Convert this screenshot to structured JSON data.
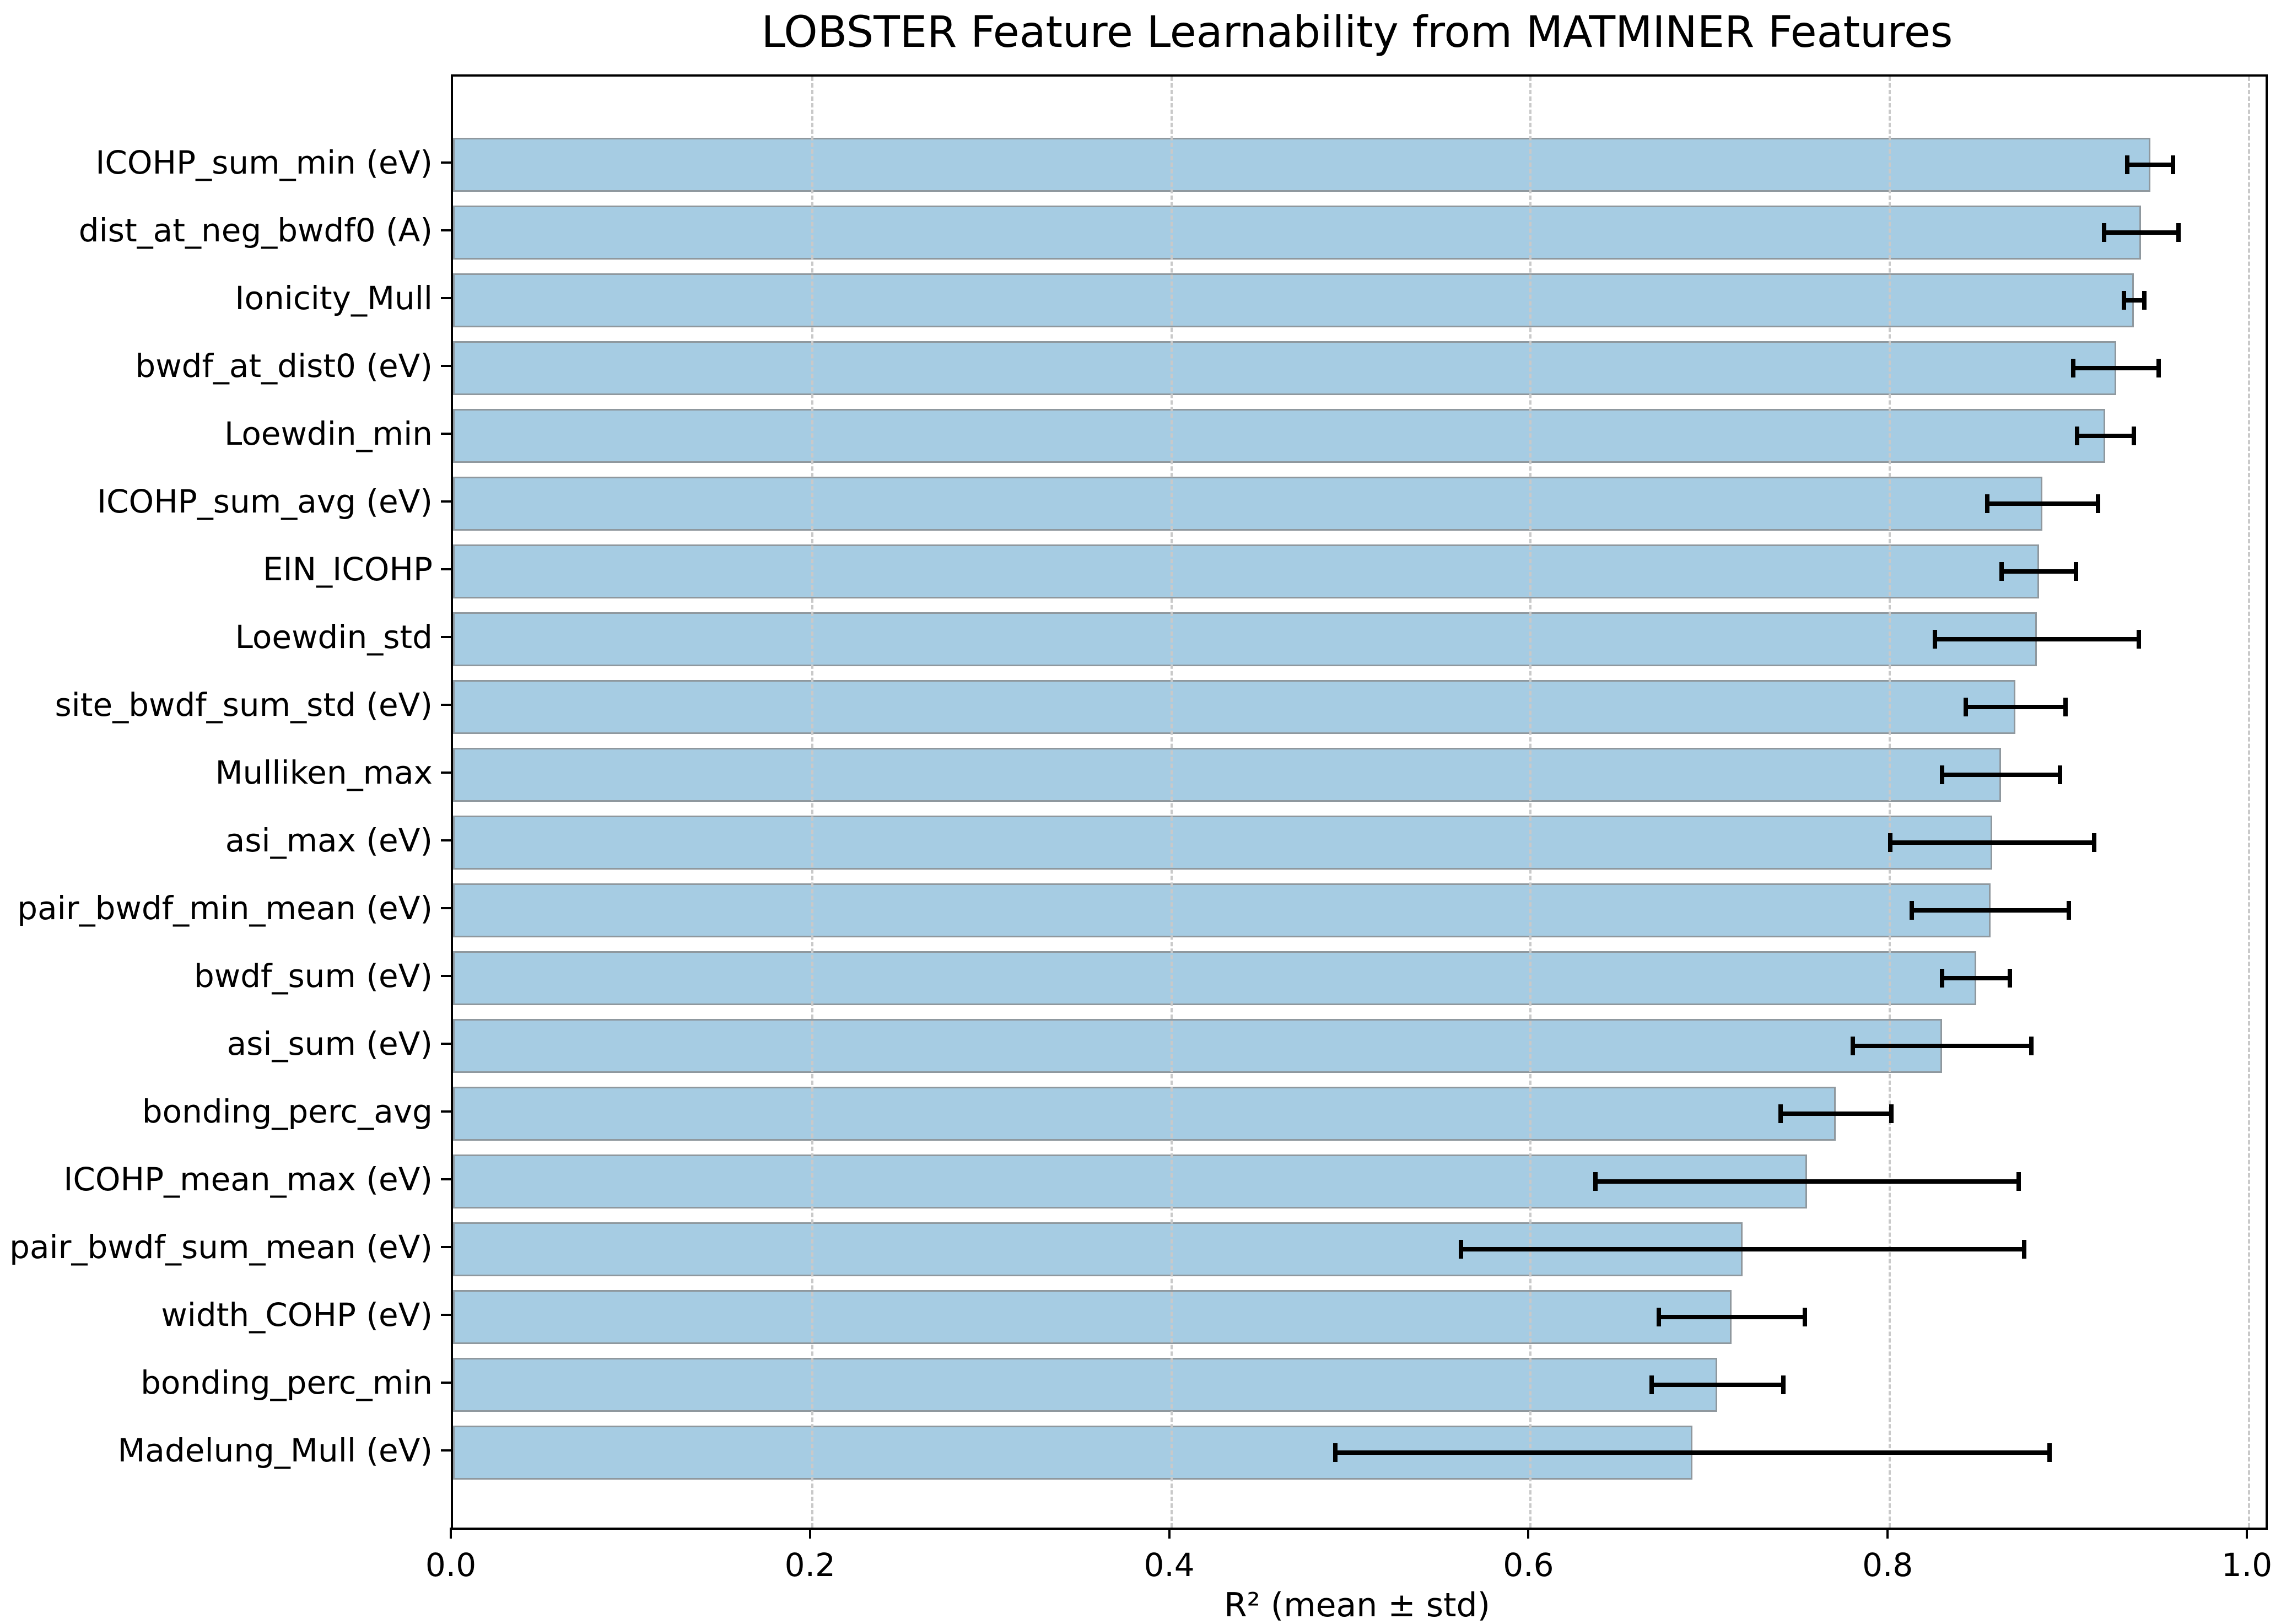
{
  "page": {
    "background": "#ffffff"
  },
  "chart_data": {
    "type": "bar",
    "orientation": "horizontal",
    "title": "LOBSTER Feature Learnability from MATMINER Features",
    "xlabel": "R² (mean ± std)",
    "xlim": [
      0,
      1.0092
    ],
    "xticks": [
      0.0,
      0.2,
      0.4,
      0.6,
      0.8,
      1.0
    ],
    "xtick_labels": [
      "0.0",
      "0.2",
      "0.4",
      "0.6",
      "0.8",
      "1.0"
    ],
    "grid": {
      "axis": "x",
      "style": "dashed",
      "color": "#c9c9c9",
      "on_ticks": [
        0.2,
        0.4,
        0.6,
        0.8,
        1.0
      ]
    },
    "legend": "none",
    "categories": [
      "ICOHP_sum_min (eV)",
      "dist_at_neg_bwdf0 (A)",
      "Ionicity_Mull",
      "bwdf_at_dist0 (eV)",
      "Loewdin_min",
      "ICOHP_sum_avg (eV)",
      "EIN_ICOHP",
      "Loewdin_std",
      "site_bwdf_sum_std (eV)",
      "Mulliken_max",
      "asi_max (eV)",
      "pair_bwdf_min_mean (eV)",
      "bwdf_sum (eV)",
      "asi_sum (eV)",
      "bonding_perc_avg",
      "ICOHP_mean_max (eV)",
      "pair_bwdf_sum_mean (eV)",
      "width_COHP (eV)",
      "bonding_perc_min",
      "Madelung_Mull (eV)"
    ],
    "series": [
      {
        "name": "R2_mean",
        "values": [
          0.945,
          0.94,
          0.936,
          0.926,
          0.92,
          0.885,
          0.883,
          0.882,
          0.87,
          0.862,
          0.857,
          0.856,
          0.848,
          0.829,
          0.77,
          0.754,
          0.718,
          0.712,
          0.704,
          0.69
        ]
      },
      {
        "name": "R2_std",
        "values": [
          0.014,
          0.022,
          0.007,
          0.025,
          0.017,
          0.032,
          0.022,
          0.058,
          0.029,
          0.034,
          0.058,
          0.045,
          0.02,
          0.051,
          0.032,
          0.119,
          0.158,
          0.042,
          0.038,
          0.2
        ]
      }
    ],
    "colors": {
      "bar_fill": "#a6cce3",
      "bar_edge": "#8f989e",
      "error_bar": "#000000",
      "grid": "#c9c9c9",
      "spine": "#000000",
      "text": "#000000",
      "background": "#ffffff"
    }
  }
}
